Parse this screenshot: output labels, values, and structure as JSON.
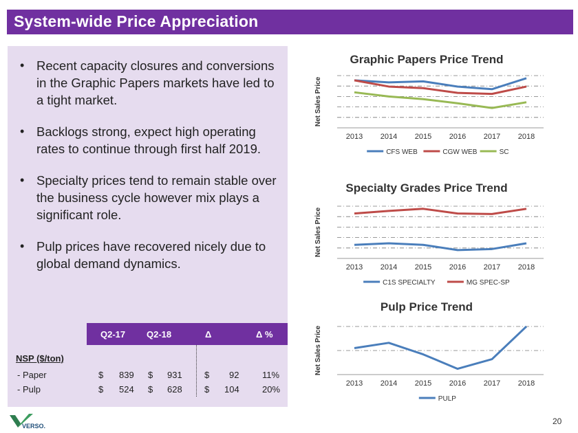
{
  "title": "System-wide Price Appreciation",
  "bullets": [
    "Recent capacity closures and conversions in the Graphic Papers markets have led to a tight market.",
    "Backlogs strong, expect high operating rates to continue through first half 2019.",
    "Specialty prices tend to remain stable over the business cycle however mix plays a significant role.",
    "Pulp prices have recovered nicely due to global demand dynamics."
  ],
  "table": {
    "headers": [
      "Q2-17",
      "Q2-18",
      "Δ",
      "Δ %"
    ],
    "section": "NSP ($/ton)",
    "rows": [
      {
        "label": "- Paper",
        "c1": "$",
        "v1": "839",
        "c2": "$",
        "v2": "931",
        "c3": "$",
        "v3": "92",
        "pct": "11%"
      },
      {
        "label": "- Pulp",
        "c1": "$",
        "v1": "524",
        "c2": "$",
        "v2": "628",
        "c3": "$",
        "v3": "104",
        "pct": "20%"
      }
    ]
  },
  "page_number": "20",
  "logo_text": "VERSO.",
  "colors": {
    "purple": "#7030a0",
    "blue": "#4a7ebb",
    "red": "#be4b48",
    "green": "#98b954"
  },
  "chart_data": [
    {
      "type": "line",
      "title": "Graphic Papers Price Trend",
      "ylabel": "Net Sales Price",
      "xlabel": "",
      "categories": [
        "2013",
        "2014",
        "2015",
        "2016",
        "2017",
        "2018"
      ],
      "ylim": [
        0,
        5
      ],
      "grid": true,
      "legend": "bottom",
      "series": [
        {
          "name": "CFS WEB",
          "color": "#4a7ebb",
          "values": [
            4.55,
            4.35,
            4.45,
            3.95,
            3.7,
            4.75
          ]
        },
        {
          "name": "CGW WEB",
          "color": "#be4b48",
          "values": [
            4.55,
            3.95,
            3.8,
            3.35,
            3.25,
            3.95
          ]
        },
        {
          "name": "SC",
          "color": "#98b954",
          "values": [
            3.4,
            3.0,
            2.75,
            2.35,
            1.9,
            2.45
          ]
        }
      ]
    },
    {
      "type": "line",
      "title": "Specialty Grades Price Trend",
      "ylabel": "Net Sales Price",
      "xlabel": "",
      "categories": [
        "2013",
        "2014",
        "2015",
        "2016",
        "2017",
        "2018"
      ],
      "ylim": [
        0,
        5
      ],
      "grid": true,
      "legend": "bottom",
      "series": [
        {
          "name": "C1S SPECIALTY",
          "color": "#4a7ebb",
          "values": [
            1.3,
            1.45,
            1.3,
            0.8,
            0.9,
            1.45
          ]
        },
        {
          "name": "MG SPEC-SP",
          "color": "#be4b48",
          "values": [
            4.3,
            4.55,
            4.75,
            4.3,
            4.25,
            4.75
          ]
        }
      ]
    },
    {
      "type": "line",
      "title": "Pulp Price Trend",
      "ylabel": "Net Sales Price",
      "xlabel": "",
      "categories": [
        "2013",
        "2014",
        "2015",
        "2016",
        "2017",
        "2018"
      ],
      "ylim": [
        0,
        5
      ],
      "grid": true,
      "legend": "bottom",
      "series": [
        {
          "name": "PULP",
          "color": "#4a7ebb",
          "values": [
            2.75,
            3.3,
            2.1,
            0.6,
            1.6,
            5.0
          ]
        }
      ]
    }
  ]
}
